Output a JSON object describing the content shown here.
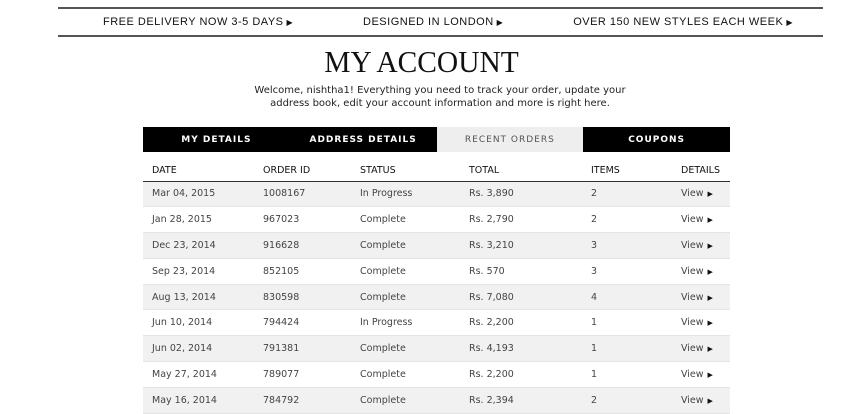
{
  "promo": [
    "FREE DELIVERY NOW 3-5 DAYS",
    "DESIGNED IN LONDON",
    "OVER 150 NEW STYLES EACH WEEK"
  ],
  "title": "MY ACCOUNT",
  "welcome": "Welcome, nishtha1! Everything you need to track your order, update your address book, edit your account information and more is right here.",
  "tabs": [
    {
      "label": "MY DETAILS"
    },
    {
      "label": "ADDRESS DETAILS"
    },
    {
      "label": "RECENT ORDERS",
      "active": true
    },
    {
      "label": "COUPONS"
    }
  ],
  "columns": [
    "DATE",
    "ORDER ID",
    "STATUS",
    "TOTAL",
    "ITEMS",
    "DETAILS"
  ],
  "orders": [
    [
      "Mar 04, 2015",
      "1008167",
      "In Progress",
      "Rs. 3,890",
      "2",
      "View"
    ],
    [
      "Jan 28, 2015",
      "967023",
      "Complete",
      "Rs. 2,790",
      "2",
      "View"
    ],
    [
      "Dec 23, 2014",
      "916628",
      "Complete",
      "Rs. 3,210",
      "3",
      "View"
    ],
    [
      "Sep 23, 2014",
      "852105",
      "Complete",
      "Rs. 570",
      "3",
      "View"
    ],
    [
      "Aug 13, 2014",
      "830598",
      "Complete",
      "Rs. 7,080",
      "4",
      "View"
    ],
    [
      "Jun 10, 2014",
      "794424",
      "In Progress",
      "Rs. 2,200",
      "1",
      "View"
    ],
    [
      "Jun 02, 2014",
      "791381",
      "Complete",
      "Rs. 4,193",
      "1",
      "View"
    ],
    [
      "May 27, 2014",
      "789077",
      "Complete",
      "Rs. 2,200",
      "1",
      "View"
    ],
    [
      "May 16, 2014",
      "784792",
      "Complete",
      "Rs. 2,394",
      "2",
      "View"
    ]
  ]
}
